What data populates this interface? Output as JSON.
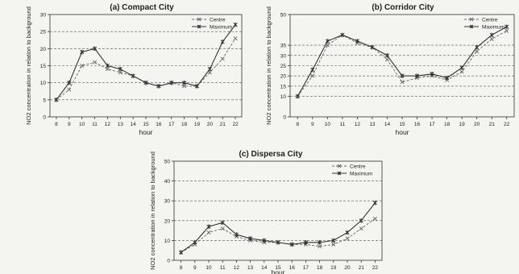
{
  "chart_data": [
    {
      "type": "line",
      "title": "(a) Compact City",
      "xlabel": "hour",
      "ylabel": "NO2 concentration in relation to background",
      "x": [
        8,
        9,
        10,
        11,
        12,
        13,
        14,
        15,
        16,
        17,
        18,
        19,
        20,
        21,
        22
      ],
      "ylim": [
        0,
        30
      ],
      "yticks": [
        0,
        5,
        10,
        15,
        20,
        25,
        30
      ],
      "grid": true,
      "legend": "top-right",
      "series": [
        {
          "name": "Centre",
          "marker": "x",
          "color": "#666666",
          "dash": "3 2",
          "values": [
            5,
            8,
            15,
            16,
            14,
            13,
            12,
            10,
            9,
            10,
            9,
            9,
            13,
            17,
            23
          ]
        },
        {
          "name": "Maximum",
          "marker": "star",
          "color": "#333333",
          "dash": "",
          "values": [
            5,
            10,
            19,
            20,
            15,
            14,
            12,
            10,
            9,
            10,
            10,
            9,
            14,
            22,
            27
          ]
        }
      ]
    },
    {
      "type": "line",
      "title": "(b) Corridor City",
      "xlabel": "hour",
      "ylabel": "NO2 concentration in relation to background",
      "x": [
        8,
        9,
        10,
        11,
        12,
        13,
        14,
        15,
        16,
        17,
        18,
        19,
        20,
        21,
        22
      ],
      "ylim": [
        0,
        50
      ],
      "yticks": [
        0,
        10,
        15,
        20,
        25,
        30,
        35,
        50
      ],
      "grid": true,
      "legend": "top-right",
      "series": [
        {
          "name": "Centre",
          "marker": "x",
          "color": "#666666",
          "dash": "3 2",
          "values": [
            10,
            20,
            35,
            40,
            36,
            34,
            28,
            17,
            19,
            20,
            18,
            22,
            32,
            38,
            42
          ]
        },
        {
          "name": "Maximum",
          "marker": "star",
          "color": "#333333",
          "dash": "",
          "values": [
            10,
            23,
            37,
            40,
            37,
            34,
            30,
            20,
            20,
            21,
            19,
            24,
            34,
            40,
            44
          ]
        }
      ]
    },
    {
      "type": "line",
      "title": "(c) Dispersa City",
      "xlabel": "hour",
      "ylabel": "NO2 concentration in relation to background",
      "x": [
        8,
        9,
        10,
        11,
        12,
        13,
        14,
        15,
        16,
        17,
        18,
        19,
        20,
        21,
        22
      ],
      "ylim": [
        0,
        50
      ],
      "yticks": [
        0,
        10,
        20,
        30,
        40,
        50
      ],
      "grid": true,
      "legend": "top-right",
      "series": [
        {
          "name": "Centre",
          "marker": "x",
          "color": "#666666",
          "dash": "3 2",
          "values": [
            4,
            8,
            14,
            16,
            12,
            10,
            9,
            9,
            8,
            8,
            7,
            8,
            11,
            16,
            21
          ]
        },
        {
          "name": "Maximum",
          "marker": "star",
          "color": "#333333",
          "dash": "",
          "values": [
            4,
            9,
            17,
            19,
            13,
            11,
            10,
            9,
            8,
            9,
            9,
            10,
            14,
            20,
            29
          ]
        }
      ]
    }
  ]
}
